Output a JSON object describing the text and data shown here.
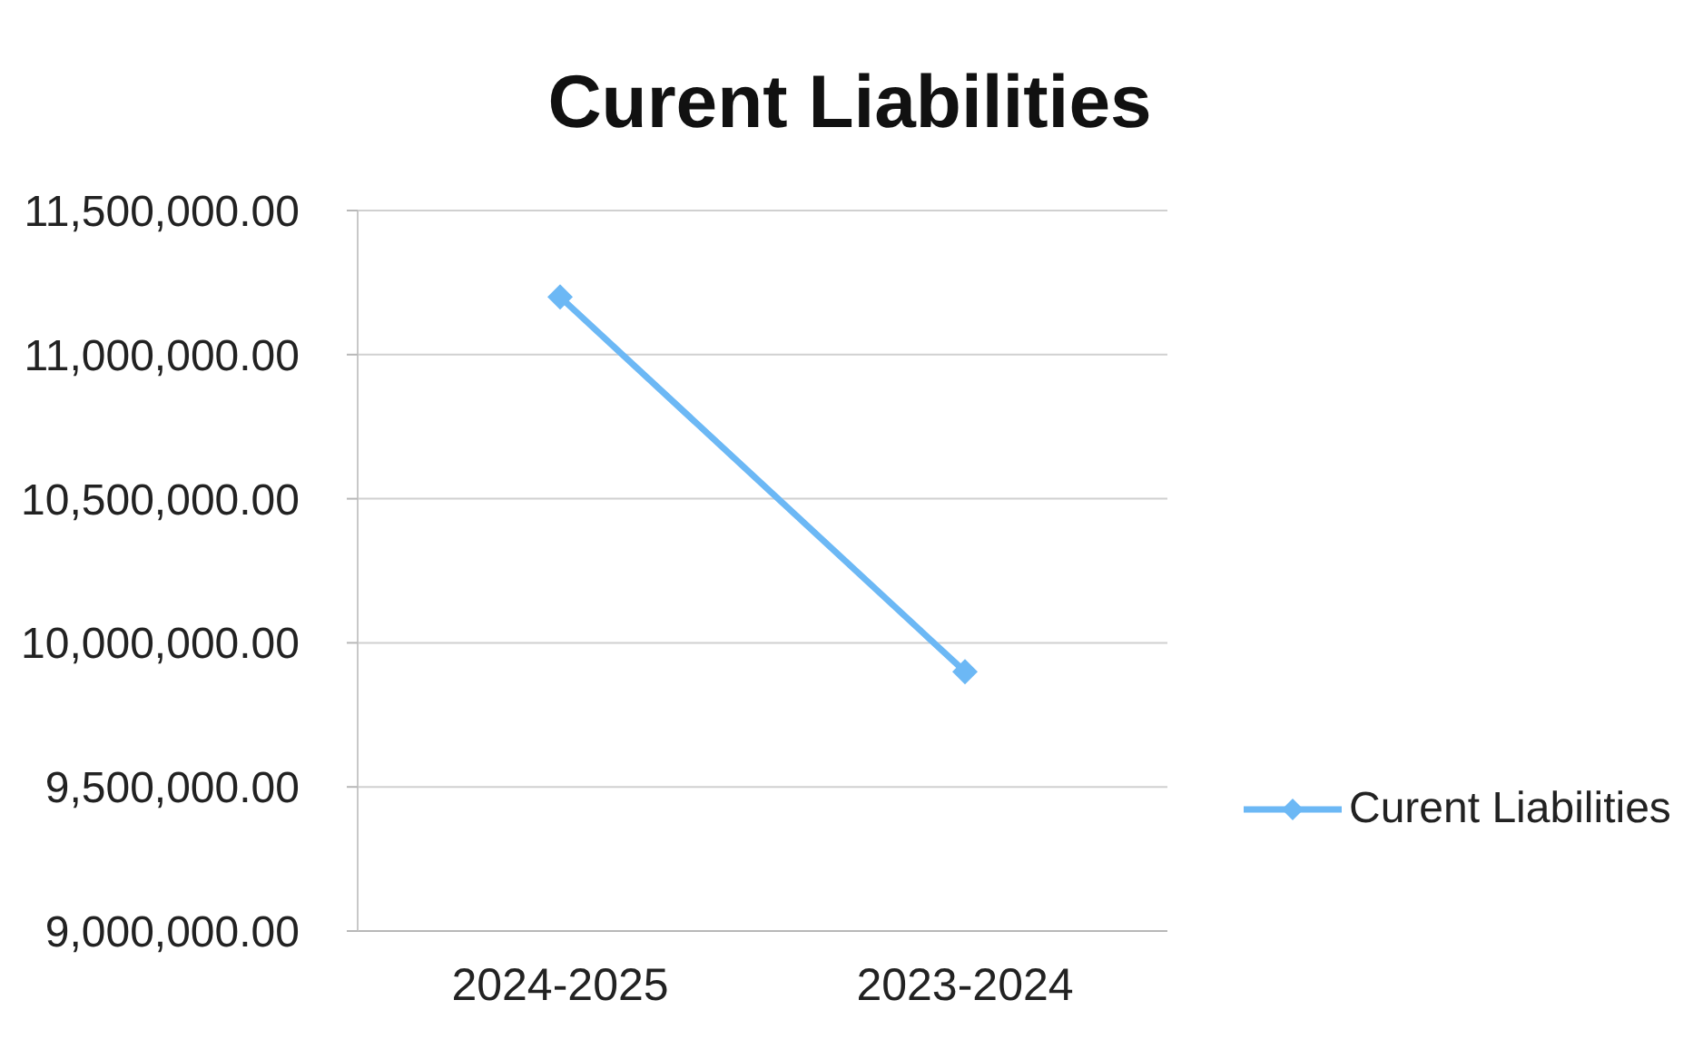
{
  "chart_data": {
    "type": "line",
    "title": "Curent Liabilities",
    "categories": [
      "2024-2025",
      "2023-2024"
    ],
    "series": [
      {
        "name": "Curent Liabilities",
        "color": "#6cb8f5",
        "values": [
          11200000,
          9900000
        ]
      }
    ],
    "ylim": [
      9000000,
      11500000
    ],
    "yticks": [
      {
        "value": 9000000,
        "label": "9,000,000.00"
      },
      {
        "value": 9500000,
        "label": "9,500,000.00"
      },
      {
        "value": 10000000,
        "label": "10,000,000.00"
      },
      {
        "value": 10500000,
        "label": "10,500,000.00"
      },
      {
        "value": 11000000,
        "label": "11,000,000.00"
      },
      {
        "value": 11500000,
        "label": "11,500,000.00"
      }
    ],
    "grid": "y",
    "legend": "right",
    "marker": "diamond"
  }
}
